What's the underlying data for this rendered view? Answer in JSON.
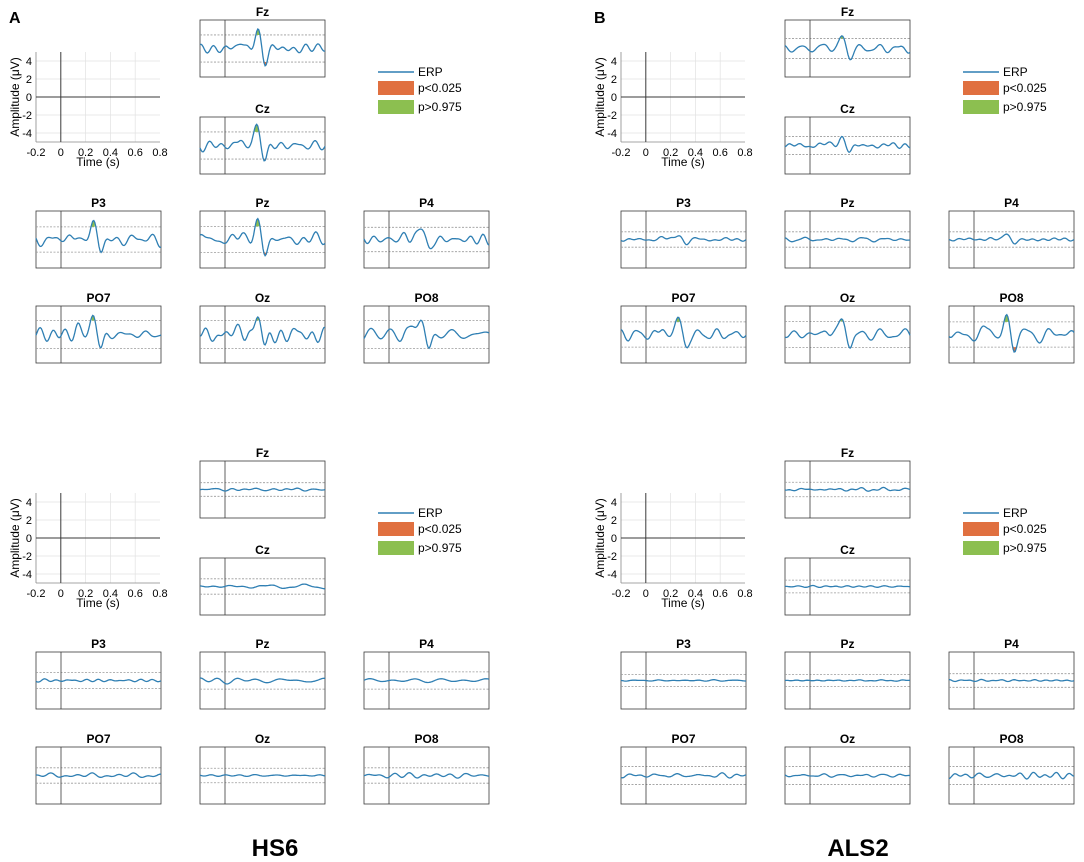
{
  "panel_letters": [
    "A",
    "B"
  ],
  "subjects": [
    "HS6",
    "ALS2"
  ],
  "legend": {
    "erp": "ERP",
    "low": "p<0.025",
    "high": "p>0.975"
  },
  "colors": {
    "erp": "#2f7fb3",
    "low": "#e07040",
    "high": "#8cbf50",
    "threshold": "#9a9a9a",
    "axis": "#3a3a3a",
    "grid": "#e2e2e2"
  },
  "axes": {
    "ylabel": "Amplitude (μV)",
    "xlabel": "Time (s)",
    "yticks": [
      "4",
      "2",
      "0",
      "-2",
      "-4"
    ],
    "xticks": [
      "-0.2",
      "0",
      "0.2",
      "0.4",
      "0.6",
      "0.8"
    ]
  },
  "chart_data": [
    {
      "panel": "A",
      "subject": "HS6",
      "row": "top",
      "type": "line",
      "x_range_s": [
        -0.2,
        0.8
      ],
      "y_range_uV": [
        -5,
        5
      ],
      "stimulus_onset_s": 0,
      "channels": [
        {
          "name": "Fz",
          "amp": 0.95,
          "sig": true
        },
        {
          "name": "Cz",
          "amp": 0.95,
          "sig": true
        },
        {
          "name": "P3",
          "amp": 0.85,
          "sig": true
        },
        {
          "name": "Pz",
          "amp": 0.9,
          "sig": true
        },
        {
          "name": "P4",
          "amp": 0.8,
          "sig": true
        },
        {
          "name": "PO7",
          "amp": 1.0,
          "sig": true
        },
        {
          "name": "Oz",
          "amp": 1.0,
          "sig": true
        },
        {
          "name": "PO8",
          "amp": 1.0,
          "sig": true
        }
      ]
    },
    {
      "panel": "B",
      "subject": "ALS2",
      "row": "top",
      "type": "line",
      "x_range_s": [
        -0.2,
        0.8
      ],
      "y_range_uV": [
        -5,
        5
      ],
      "stimulus_onset_s": 0,
      "channels": [
        {
          "name": "Fz",
          "amp": 0.55,
          "sig": true
        },
        {
          "name": "Cz",
          "amp": 0.45,
          "sig": true
        },
        {
          "name": "P3",
          "amp": 0.3,
          "sig": true
        },
        {
          "name": "Pz",
          "amp": 0.3,
          "sig": false
        },
        {
          "name": "P4",
          "amp": 0.3,
          "sig": true
        },
        {
          "name": "PO7",
          "amp": 0.85,
          "sig": true
        },
        {
          "name": "Oz",
          "amp": 0.9,
          "sig": true
        },
        {
          "name": "PO8",
          "amp": 0.85,
          "sig": true
        }
      ]
    },
    {
      "panel": "A",
      "subject": "HS6",
      "row": "bottom",
      "type": "line",
      "x_range_s": [
        -0.2,
        0.8
      ],
      "y_range_uV": [
        -5,
        5
      ],
      "stimulus_onset_s": 0,
      "channels": [
        {
          "name": "Fz",
          "amp": 0.2,
          "sig": false
        },
        {
          "name": "Cz",
          "amp": 0.3,
          "sig": false
        },
        {
          "name": "P3",
          "amp": 0.35,
          "sig": false
        },
        {
          "name": "Pz",
          "amp": 0.4,
          "sig": false
        },
        {
          "name": "P4",
          "amp": 0.4,
          "sig": false
        },
        {
          "name": "PO7",
          "amp": 0.3,
          "sig": false
        },
        {
          "name": "Oz",
          "amp": 0.25,
          "sig": false
        },
        {
          "name": "PO8",
          "amp": 0.3,
          "sig": false
        }
      ]
    },
    {
      "panel": "B",
      "subject": "ALS2",
      "row": "bottom",
      "type": "line",
      "x_range_s": [
        -0.2,
        0.8
      ],
      "y_range_uV": [
        -5,
        5
      ],
      "stimulus_onset_s": 0,
      "channels": [
        {
          "name": "Fz",
          "amp": 0.25,
          "sig": false
        },
        {
          "name": "Cz",
          "amp": 0.15,
          "sig": false
        },
        {
          "name": "P3",
          "amp": 0.1,
          "sig": false
        },
        {
          "name": "Pz",
          "amp": 0.1,
          "sig": false
        },
        {
          "name": "P4",
          "amp": 0.2,
          "sig": false
        },
        {
          "name": "PO7",
          "amp": 0.45,
          "sig": false
        },
        {
          "name": "Oz",
          "amp": 0.45,
          "sig": false
        },
        {
          "name": "PO8",
          "amp": 0.45,
          "sig": false
        }
      ]
    }
  ]
}
